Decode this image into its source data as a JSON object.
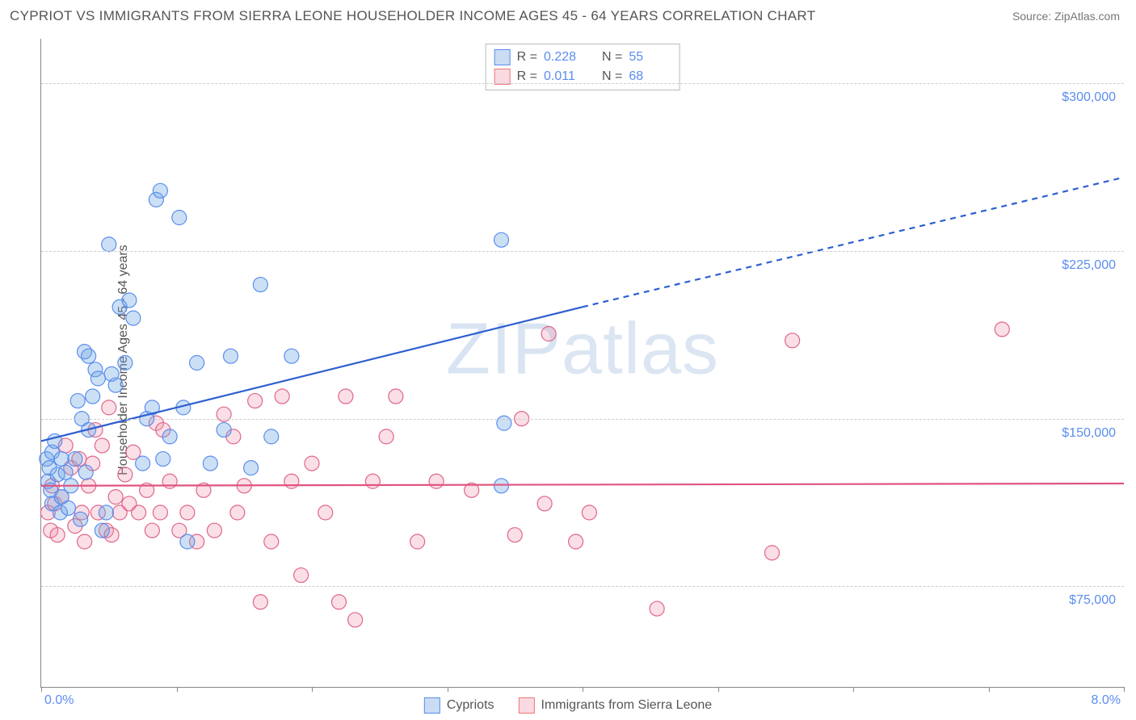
{
  "title": "CYPRIOT VS IMMIGRANTS FROM SIERRA LEONE HOUSEHOLDER INCOME AGES 45 - 64 YEARS CORRELATION CHART",
  "source": "Source: ZipAtlas.com",
  "watermark": "ZIPatlas",
  "y_axis": {
    "label": "Householder Income Ages 45 - 64 years",
    "min": 30000,
    "max": 320000,
    "ticks": [
      75000,
      150000,
      225000,
      300000
    ],
    "tick_labels": [
      "$75,000",
      "$150,000",
      "$225,000",
      "$300,000"
    ],
    "tick_color": "#5b8def",
    "grid_color": "#cccccc"
  },
  "x_axis": {
    "min": 0.0,
    "max": 8.0,
    "ticks": [
      0.0,
      1.0,
      2.0,
      3.0,
      4.0,
      5.0,
      6.0,
      7.0,
      8.0
    ],
    "left_label": "0.0%",
    "right_label": "8.0%",
    "label_color": "#5b8def"
  },
  "legend_top": [
    {
      "color": "blue",
      "r_label": "R =",
      "r_value": "0.228",
      "n_label": "N =",
      "n_value": "55"
    },
    {
      "color": "pink",
      "r_label": "R =",
      "r_value": "0.011",
      "n_label": "N =",
      "n_value": "68"
    }
  ],
  "legend_bottom": [
    {
      "color": "blue",
      "label": "Cypriots"
    },
    {
      "color": "pink",
      "label": "Immigrants from Sierra Leone"
    }
  ],
  "series": {
    "cypriots": {
      "marker_fill": "rgba(110,165,225,0.35)",
      "marker_stroke": "#5b8def",
      "marker_radius": 9,
      "trend": {
        "x1": 0.0,
        "y1": 140000,
        "x2": 4.0,
        "y2": 200000,
        "x2_dash": 8.0,
        "y2_dash": 258000,
        "stroke": "#2e5fd0",
        "width": 2.2
      },
      "points": [
        [
          0.04,
          132000
        ],
        [
          0.06,
          128000
        ],
        [
          0.05,
          122000
        ],
        [
          0.08,
          135000
        ],
        [
          0.07,
          118000
        ],
        [
          0.1,
          140000
        ],
        [
          0.12,
          125000
        ],
        [
          0.08,
          112000
        ],
        [
          0.15,
          132000
        ],
        [
          0.14,
          108000
        ],
        [
          0.18,
          126000
        ],
        [
          0.2,
          110000
        ],
        [
          0.22,
          120000
        ],
        [
          0.25,
          132000
        ],
        [
          0.3,
          150000
        ],
        [
          0.35,
          145000
        ],
        [
          0.38,
          160000
        ],
        [
          0.4,
          172000
        ],
        [
          0.42,
          168000
        ],
        [
          0.29,
          105000
        ],
        [
          0.32,
          180000
        ],
        [
          0.35,
          178000
        ],
        [
          0.52,
          170000
        ],
        [
          0.58,
          200000
        ],
        [
          0.62,
          175000
        ],
        [
          0.65,
          203000
        ],
        [
          0.55,
          165000
        ],
        [
          0.75,
          130000
        ],
        [
          0.78,
          150000
        ],
        [
          0.82,
          155000
        ],
        [
          0.85,
          248000
        ],
        [
          0.88,
          252000
        ],
        [
          0.5,
          228000
        ],
        [
          0.45,
          100000
        ],
        [
          0.48,
          108000
        ],
        [
          0.95,
          142000
        ],
        [
          1.02,
          240000
        ],
        [
          1.05,
          155000
        ],
        [
          1.08,
          95000
        ],
        [
          1.15,
          175000
        ],
        [
          1.25,
          130000
        ],
        [
          1.35,
          145000
        ],
        [
          1.4,
          178000
        ],
        [
          1.55,
          128000
        ],
        [
          1.62,
          210000
        ],
        [
          1.7,
          142000
        ],
        [
          1.85,
          178000
        ],
        [
          0.9,
          132000
        ],
        [
          0.68,
          195000
        ],
        [
          3.4,
          230000
        ],
        [
          3.42,
          148000
        ],
        [
          3.4,
          120000
        ],
        [
          0.27,
          158000
        ],
        [
          0.33,
          126000
        ],
        [
          0.15,
          115000
        ]
      ]
    },
    "sierra_leone": {
      "marker_fill": "rgba(240,150,175,0.3)",
      "marker_stroke": "#e06688",
      "marker_radius": 9,
      "trend": {
        "x1": 0.0,
        "y1": 120000,
        "x2": 8.0,
        "y2": 121000,
        "stroke": "#e05580",
        "width": 2.2
      },
      "points": [
        [
          0.05,
          108000
        ],
        [
          0.07,
          100000
        ],
        [
          0.1,
          112000
        ],
        [
          0.12,
          98000
        ],
        [
          0.08,
          120000
        ],
        [
          0.15,
          115000
        ],
        [
          0.18,
          138000
        ],
        [
          0.22,
          128000
        ],
        [
          0.25,
          102000
        ],
        [
          0.28,
          132000
        ],
        [
          0.3,
          108000
        ],
        [
          0.32,
          95000
        ],
        [
          0.35,
          120000
        ],
        [
          0.38,
          130000
        ],
        [
          0.42,
          108000
        ],
        [
          0.45,
          138000
        ],
        [
          0.48,
          100000
        ],
        [
          0.52,
          98000
        ],
        [
          0.55,
          115000
        ],
        [
          0.58,
          108000
        ],
        [
          0.62,
          125000
        ],
        [
          0.65,
          112000
        ],
        [
          0.68,
          135000
        ],
        [
          0.72,
          108000
        ],
        [
          0.78,
          118000
        ],
        [
          0.82,
          100000
        ],
        [
          0.85,
          148000
        ],
        [
          0.88,
          108000
        ],
        [
          0.95,
          122000
        ],
        [
          1.02,
          100000
        ],
        [
          1.08,
          108000
        ],
        [
          1.15,
          95000
        ],
        [
          1.2,
          118000
        ],
        [
          1.28,
          100000
        ],
        [
          1.35,
          152000
        ],
        [
          1.42,
          142000
        ],
        [
          1.5,
          120000
        ],
        [
          1.58,
          158000
        ],
        [
          1.62,
          68000
        ],
        [
          1.7,
          95000
        ],
        [
          1.78,
          160000
        ],
        [
          1.85,
          122000
        ],
        [
          1.92,
          80000
        ],
        [
          2.0,
          130000
        ],
        [
          2.1,
          108000
        ],
        [
          2.2,
          68000
        ],
        [
          2.25,
          160000
        ],
        [
          2.32,
          60000
        ],
        [
          2.45,
          122000
        ],
        [
          2.55,
          142000
        ],
        [
          2.62,
          160000
        ],
        [
          2.78,
          95000
        ],
        [
          2.92,
          122000
        ],
        [
          3.18,
          118000
        ],
        [
          3.5,
          98000
        ],
        [
          3.55,
          150000
        ],
        [
          3.72,
          112000
        ],
        [
          3.75,
          188000
        ],
        [
          3.95,
          95000
        ],
        [
          4.05,
          108000
        ],
        [
          4.55,
          65000
        ],
        [
          5.4,
          90000
        ],
        [
          5.55,
          185000
        ],
        [
          7.1,
          190000
        ],
        [
          0.4,
          145000
        ],
        [
          0.5,
          155000
        ],
        [
          0.9,
          145000
        ],
        [
          1.45,
          108000
        ]
      ]
    }
  },
  "colors": {
    "text": "#555555",
    "axis": "#888888",
    "background": "#ffffff"
  }
}
